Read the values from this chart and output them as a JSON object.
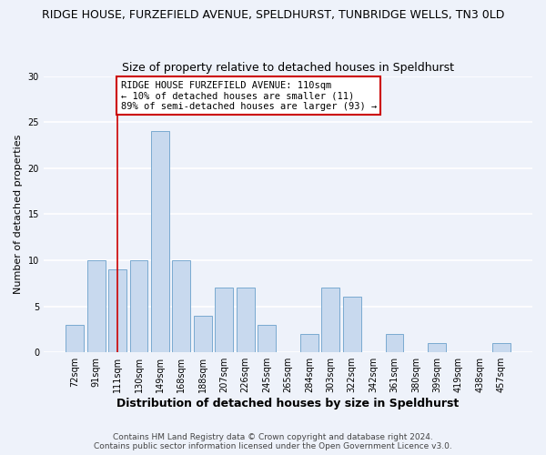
{
  "title_line1": "RIDGE HOUSE, FURZEFIELD AVENUE, SPELDHURST, TUNBRIDGE WELLS, TN3 0LD",
  "title_line2": "Size of property relative to detached houses in Speldhurst",
  "xlabel": "Distribution of detached houses by size in Speldhurst",
  "ylabel": "Number of detached properties",
  "bar_labels": [
    "72sqm",
    "91sqm",
    "111sqm",
    "130sqm",
    "149sqm",
    "168sqm",
    "188sqm",
    "207sqm",
    "226sqm",
    "245sqm",
    "265sqm",
    "284sqm",
    "303sqm",
    "322sqm",
    "342sqm",
    "361sqm",
    "380sqm",
    "399sqm",
    "419sqm",
    "438sqm",
    "457sqm"
  ],
  "bar_values": [
    3,
    10,
    9,
    10,
    24,
    10,
    4,
    7,
    7,
    3,
    0,
    2,
    7,
    6,
    0,
    2,
    0,
    1,
    0,
    0,
    1
  ],
  "bar_color": "#c8d9ee",
  "bar_edge_color": "#7aaad0",
  "vline_x_idx": 2,
  "vline_color": "#cc0000",
  "annotation_title": "RIDGE HOUSE FURZEFIELD AVENUE: 110sqm",
  "annotation_line2": "← 10% of detached houses are smaller (11)",
  "annotation_line3": "89% of semi-detached houses are larger (93) →",
  "annotation_box_color": "#ffffff",
  "annotation_box_edge": "#cc0000",
  "ylim": [
    0,
    30
  ],
  "yticks": [
    0,
    5,
    10,
    15,
    20,
    25,
    30
  ],
  "footer_line1": "Contains HM Land Registry data © Crown copyright and database right 2024.",
  "footer_line2": "Contains public sector information licensed under the Open Government Licence v3.0.",
  "background_color": "#eef2fa",
  "grid_color": "#ffffff",
  "title1_fontsize": 9,
  "title2_fontsize": 9,
  "ylabel_fontsize": 8,
  "xlabel_fontsize": 9,
  "tick_fontsize": 7,
  "footer_fontsize": 6.5
}
